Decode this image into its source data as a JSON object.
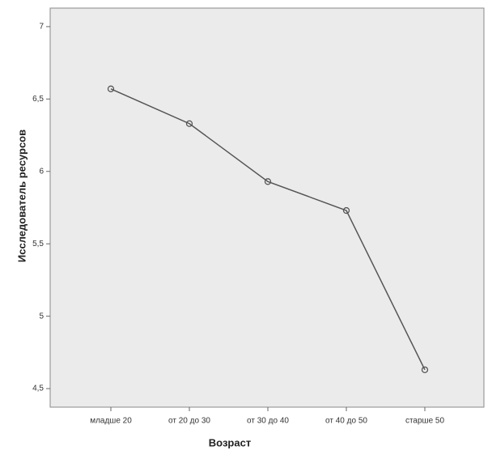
{
  "chart_data": {
    "type": "line",
    "x_label": "Возраст",
    "y_label": "Исследователь ресурсов",
    "categories": [
      "младше 20",
      "от 20 до 30",
      "от 30 до 40",
      "от 40 до 50",
      "старше 50"
    ],
    "series": [
      {
        "name": "Исследователь ресурсов",
        "color": "#555555",
        "values": [
          6.57,
          6.33,
          5.93,
          5.73,
          4.63
        ]
      }
    ],
    "ylim": [
      4.372,
      7.128
    ],
    "yticks": [
      {
        "value": 4.5,
        "label": "4,5"
      },
      5,
      {
        "value": 5.5,
        "label": "5,5"
      },
      6,
      {
        "value": 6.5,
        "label": "6,5"
      },
      7
    ],
    "grid": false,
    "background": "#ebebeb"
  }
}
